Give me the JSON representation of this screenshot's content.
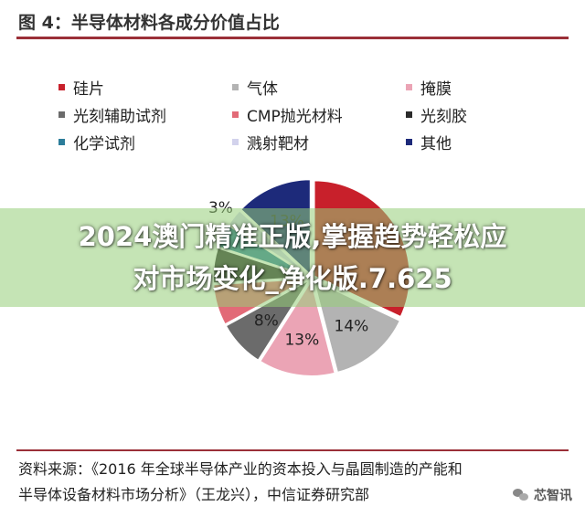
{
  "header": {
    "title": "图 4：半导体材料各成分价值占比"
  },
  "colors": {
    "rule": "#9b2f38"
  },
  "chart_data": {
    "type": "pie",
    "title": "",
    "legend_position": "top",
    "slices": [
      {
        "name": "硅片",
        "value": 32,
        "label": "",
        "color": "#c8202b"
      },
      {
        "name": "气体",
        "value": 14,
        "label": "14%",
        "color": "#b3b3b3"
      },
      {
        "name": "掩膜",
        "value": 13,
        "label": "13%",
        "color": "#eba4b5"
      },
      {
        "name": "光刻辅助试剂",
        "value": 8,
        "label": "8%",
        "color": "#6b6b6b"
      },
      {
        "name": "CMP抛光材料",
        "value": 7,
        "label": "",
        "color": "#e26a77"
      },
      {
        "name": "光刻胶",
        "value": 6,
        "label": "",
        "color": "#2b2b2b"
      },
      {
        "name": "化学试剂",
        "value": 4,
        "label": "",
        "color": "#2c7d9a"
      },
      {
        "name": "溅射靶材",
        "value": 3,
        "label": "3%",
        "color": "#d2d2ec"
      },
      {
        "name": "其他",
        "value": 13,
        "label": "13%",
        "color": "#1d2a7a"
      }
    ]
  },
  "banner": {
    "line1": "2024澳门精准正版,掌握趋势轻松应",
    "line2": "对市场变化_净化版.7.625"
  },
  "source": {
    "line1": "资料来源：《2016 年全球半导体产业的资本投入与晶圆制造的产能和",
    "line2": "半导体设备材料市场分析》（王龙兴），中信证券研究部"
  },
  "watermark": {
    "text": "芯智讯"
  }
}
